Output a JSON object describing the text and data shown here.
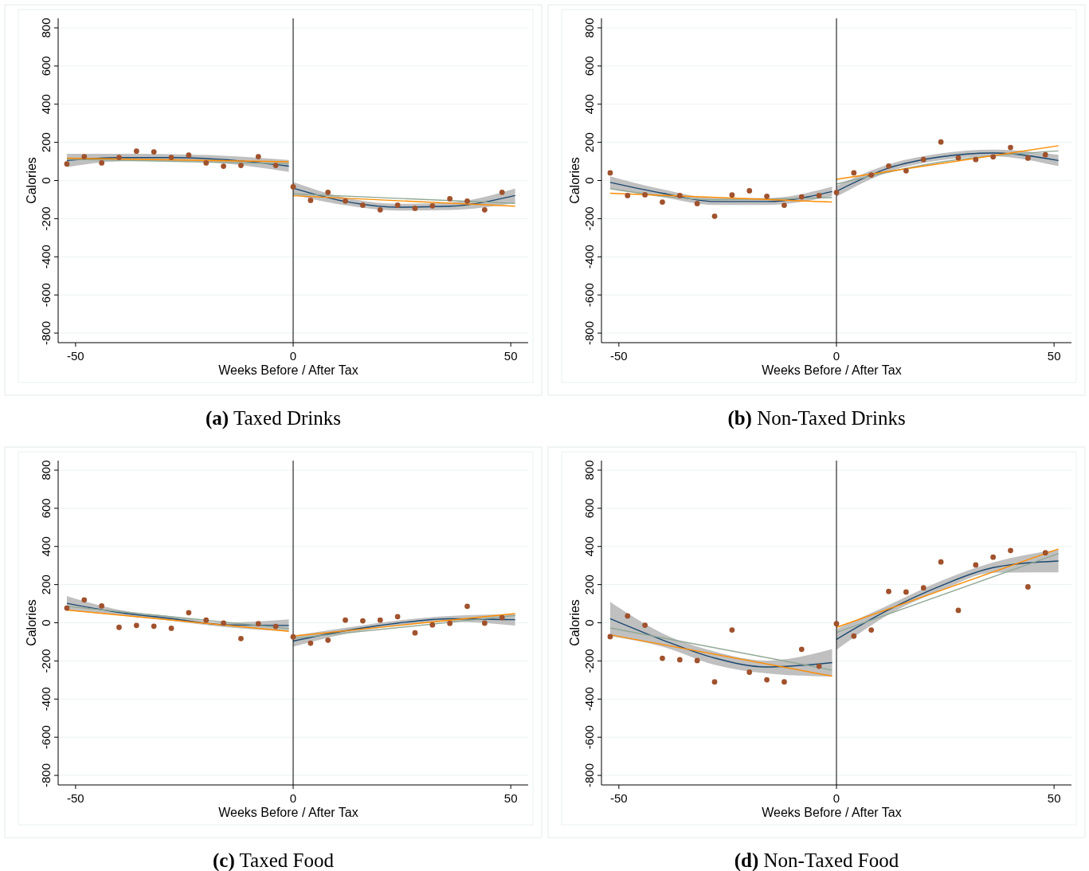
{
  "chart_data": [
    {
      "type": "line",
      "title": "(a) Taxed Drinks",
      "xlabel": "Weeks Before / After Tax",
      "ylabel": "Calories",
      "xlim": [
        -54,
        54
      ],
      "ylim": [
        -850,
        850
      ],
      "xticks": [
        -50,
        0,
        50
      ],
      "yticks": [
        -800,
        -600,
        -400,
        -200,
        0,
        200,
        400,
        600,
        800
      ],
      "grid": "y",
      "ref_lines": [
        {
          "axis": "x",
          "value": 0,
          "color": "#000000"
        }
      ],
      "series": [
        {
          "color": "#1a476f",
          "x": [
            -52,
            -40,
            -28,
            -16,
            -1
          ],
          "values": [
            105,
            120,
            120,
            110,
            75
          ],
          "lower": [
            70,
            100,
            102,
            90,
            45
          ],
          "upper": [
            140,
            140,
            138,
            130,
            108
          ]
        },
        {
          "color": "#90a896",
          "x": [
            -52,
            -1
          ],
          "values": [
            112,
            88
          ]
        },
        {
          "color": "#ff8c00",
          "x": [
            -52,
            -1
          ],
          "values": [
            117,
            98
          ]
        },
        {
          "color": "#1a476f",
          "x": [
            0,
            12,
            24,
            36,
            51
          ],
          "values": [
            -40,
            -110,
            -140,
            -135,
            -79
          ],
          "lower": [
            -75,
            -130,
            -158,
            -155,
            -118
          ],
          "upper": [
            -8,
            -90,
            -122,
            -115,
            -42
          ]
        },
        {
          "color": "#90a896",
          "x": [
            0,
            51
          ],
          "values": [
            -70,
            -120
          ]
        },
        {
          "color": "#ff8c00",
          "x": [
            0,
            51
          ],
          "values": [
            -80,
            -135
          ]
        },
        {
          "type": "scatter",
          "marker": "circle",
          "color": "#a0522d",
          "x": [
            -52,
            -48,
            -44,
            -40,
            -36,
            -32,
            -28,
            -24,
            -20,
            -16,
            -12,
            -8,
            -4,
            0,
            4,
            8,
            12,
            16,
            20,
            24,
            28,
            32,
            36,
            40,
            44,
            48
          ],
          "values": [
            87,
            125,
            92,
            121,
            154,
            150,
            121,
            133,
            92,
            75,
            79,
            125,
            79,
            -33,
            -104,
            -62,
            -108,
            -129,
            -154,
            -129,
            -146,
            -133,
            -96,
            -108,
            -154,
            -62
          ]
        }
      ]
    },
    {
      "type": "line",
      "title": "(b) Non-Taxed Drinks",
      "xlabel": "Weeks Before / After Tax",
      "ylabel": "Calories",
      "xlim": [
        -54,
        54
      ],
      "ylim": [
        -850,
        850
      ],
      "xticks": [
        -50,
        0,
        50
      ],
      "yticks": [
        -800,
        -600,
        -400,
        -200,
        0,
        200,
        400,
        600,
        800
      ],
      "grid": "y",
      "ref_lines": [
        {
          "axis": "x",
          "value": 0,
          "color": "#000000"
        }
      ],
      "series": [
        {
          "color": "#1a476f",
          "x": [
            -52,
            -40,
            -28,
            -16,
            -1
          ],
          "values": [
            -10,
            -67,
            -110,
            -110,
            -58
          ],
          "lower": [
            -42,
            -88,
            -128,
            -128,
            -82
          ],
          "upper": [
            22,
            -46,
            -92,
            -92,
            -32
          ]
        },
        {
          "color": "#90a896",
          "x": [
            -52,
            -28,
            -1
          ],
          "values": [
            -43,
            -100,
            -90
          ]
        },
        {
          "color": "#ff8c00",
          "x": [
            -52,
            -1
          ],
          "values": [
            -67,
            -113
          ]
        },
        {
          "color": "#1a476f",
          "x": [
            0,
            12,
            24,
            36,
            51
          ],
          "values": [
            -57,
            65,
            124,
            144,
            105
          ],
          "lower": [
            -85,
            45,
            106,
            126,
            75
          ],
          "upper": [
            -28,
            85,
            142,
            162,
            135
          ]
        },
        {
          "color": "#90a896",
          "x": [
            0,
            24,
            51
          ],
          "values": [
            -19,
            97,
            155
          ]
        },
        {
          "color": "#ff8c00",
          "x": [
            0,
            51
          ],
          "values": [
            6,
            182
          ]
        },
        {
          "type": "scatter",
          "marker": "circle",
          "color": "#a0522d",
          "x": [
            -52,
            -48,
            -44,
            -40,
            -36,
            -32,
            -28,
            -24,
            -20,
            -16,
            -12,
            -8,
            -4,
            0,
            4,
            8,
            12,
            16,
            20,
            24,
            28,
            32,
            36,
            40,
            44,
            48
          ],
          "values": [
            40,
            -79,
            -75,
            -113,
            -79,
            -121,
            -187,
            -76,
            -54,
            -83,
            -130,
            -86,
            -79,
            -63,
            40,
            29,
            76,
            51,
            110,
            202,
            119,
            110,
            124,
            173,
            117,
            135
          ]
        }
      ]
    },
    {
      "type": "line",
      "title": "(c) Taxed Food",
      "xlabel": "Weeks Before / After Tax",
      "ylabel": "Calories",
      "xlim": [
        -54,
        54
      ],
      "ylim": [
        -850,
        850
      ],
      "xticks": [
        -50,
        0,
        50
      ],
      "yticks": [
        -800,
        -600,
        -400,
        -200,
        0,
        200,
        400,
        600,
        800
      ],
      "grid": "y",
      "ref_lines": [
        {
          "axis": "x",
          "value": 0,
          "color": "#000000"
        }
      ],
      "series": [
        {
          "color": "#1a476f",
          "x": [
            -52,
            -40,
            -28,
            -16,
            -1
          ],
          "values": [
            102,
            54,
            22,
            -10,
            -14
          ],
          "lower": [
            65,
            40,
            10,
            -22,
            -45
          ],
          "upper": [
            140,
            68,
            34,
            2,
            18
          ]
        },
        {
          "color": "#90a896",
          "x": [
            -52,
            -1
          ],
          "values": [
            86,
            -30
          ]
        },
        {
          "color": "#ff8c00",
          "x": [
            -52,
            -1
          ],
          "values": [
            67,
            -45
          ]
        },
        {
          "color": "#1a476f",
          "x": [
            0,
            12,
            24,
            36,
            51
          ],
          "values": [
            -96,
            -42,
            -2,
            21,
            16
          ],
          "lower": [
            -125,
            -58,
            -16,
            6,
            -15
          ],
          "upper": [
            -68,
            -26,
            12,
            36,
            45
          ]
        },
        {
          "color": "#90a896",
          "x": [
            0,
            51
          ],
          "values": [
            -82,
            38
          ]
        },
        {
          "color": "#ff8c00",
          "x": [
            0,
            51
          ],
          "values": [
            -70,
            48
          ]
        },
        {
          "type": "scatter",
          "marker": "circle",
          "color": "#a0522d",
          "x": [
            -52,
            -48,
            -44,
            -40,
            -36,
            -32,
            -28,
            -24,
            -20,
            -16,
            -12,
            -8,
            -4,
            0,
            4,
            8,
            12,
            16,
            20,
            24,
            28,
            32,
            36,
            40,
            44,
            48
          ],
          "values": [
            77,
            120,
            88,
            -24,
            -14,
            -18,
            -29,
            53,
            14,
            -2,
            -83,
            -5,
            -19,
            -74,
            -107,
            -91,
            14,
            10,
            14,
            32,
            -53,
            -11,
            -3,
            86,
            -2,
            27
          ]
        }
      ]
    },
    {
      "type": "line",
      "title": "(d) Non-Taxed Food",
      "xlabel": "Weeks Before / After Tax",
      "ylabel": "Calories",
      "xlim": [
        -54,
        54
      ],
      "ylim": [
        -850,
        850
      ],
      "xticks": [
        -50,
        0,
        50
      ],
      "yticks": [
        -800,
        -600,
        -400,
        -200,
        0,
        200,
        400,
        600,
        800
      ],
      "grid": "y",
      "ref_lines": [
        {
          "axis": "x",
          "value": 0,
          "color": "#000000"
        }
      ],
      "series": [
        {
          "color": "#1a476f",
          "x": [
            -52,
            -40,
            -28,
            -16,
            -1
          ],
          "values": [
            21,
            -90,
            -185,
            -232,
            -209
          ],
          "lower": [
            -70,
            -125,
            -220,
            -265,
            -282
          ],
          "upper": [
            110,
            -55,
            -150,
            -198,
            -138
          ]
        },
        {
          "color": "#90a896",
          "x": [
            -52,
            -1
          ],
          "values": [
            -27,
            -248
          ]
        },
        {
          "color": "#ff8c00",
          "x": [
            -52,
            -1
          ],
          "values": [
            -63,
            -280
          ]
        },
        {
          "color": "#1a476f",
          "x": [
            0,
            12,
            24,
            36,
            51
          ],
          "values": [
            -87,
            68,
            194,
            289,
            324
          ],
          "lower": [
            -142,
            43,
            169,
            262,
            264
          ],
          "upper": [
            -32,
            93,
            219,
            316,
            384
          ]
        },
        {
          "color": "#90a896",
          "x": [
            0,
            51
          ],
          "values": [
            -51,
            363
          ]
        },
        {
          "color": "#ff8c00",
          "x": [
            0,
            51
          ],
          "values": [
            -24,
            387
          ]
        },
        {
          "type": "scatter",
          "marker": "circle",
          "color": "#a0522d",
          "x": [
            -52,
            -48,
            -44,
            -40,
            -36,
            -32,
            -28,
            -24,
            -20,
            -16,
            -12,
            -8,
            -4,
            0,
            4,
            8,
            12,
            16,
            20,
            24,
            28,
            32,
            36,
            40,
            44,
            48
          ],
          "values": [
            -73,
            36,
            -13,
            -186,
            -194,
            -198,
            -310,
            -38,
            -259,
            -299,
            -310,
            -139,
            -228,
            -5,
            -70,
            -38,
            164,
            161,
            183,
            319,
            65,
            303,
            344,
            379,
            188,
            367
          ]
        }
      ]
    }
  ]
}
